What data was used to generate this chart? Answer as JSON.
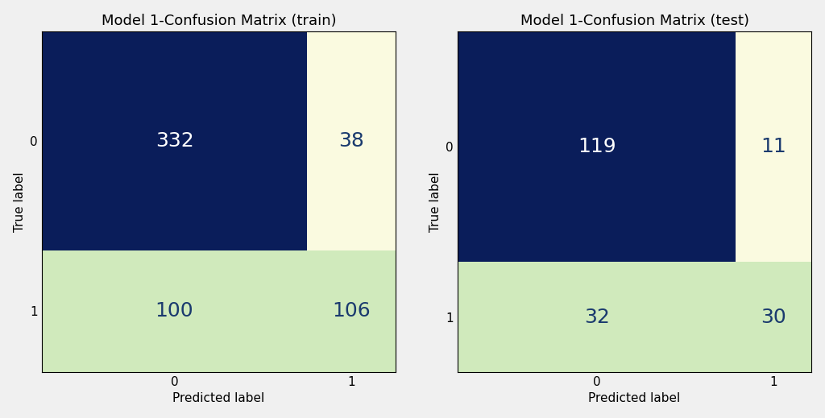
{
  "train_matrix": [
    [
      332,
      38
    ],
    [
      100,
      106
    ]
  ],
  "test_matrix": [
    [
      119,
      11
    ],
    [
      32,
      30
    ]
  ],
  "title_train": "Model 1-Confusion Matrix (train)",
  "title_test": "Model 1-Confusion Matrix (test)",
  "xlabel": "Predicted label",
  "ylabel": "True label",
  "class_labels": [
    "0",
    "1"
  ],
  "colors": {
    "dark_blue": "#0a1d5a",
    "light_yellow": "#fafae0",
    "light_green": "#d0eabc"
  },
  "text_color_on_dark": "#ffffff",
  "text_color_on_light": "#1a3a6e",
  "title_fontsize": 13,
  "label_fontsize": 11,
  "value_fontsize": 18,
  "tick_fontsize": 11,
  "fig_bg": "#f0f0f0"
}
